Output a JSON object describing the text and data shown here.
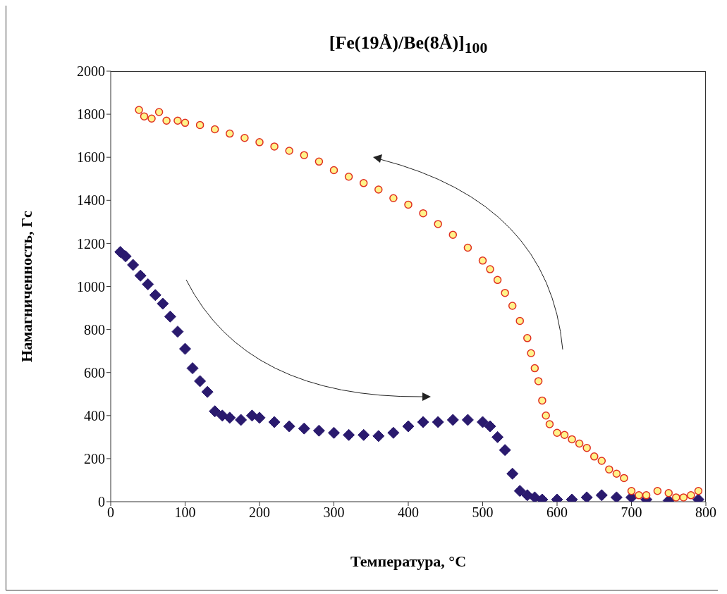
{
  "chart_data": {
    "type": "scatter",
    "title": "[Fe(19Å)/Be(8Å)]$_{100}$",
    "xlabel": "Температура, °C",
    "ylabel": "Намагниченность, Гс",
    "xlim": [
      0,
      800
    ],
    "xticks": [
      0,
      100,
      200,
      300,
      400,
      500,
      600,
      700,
      800
    ],
    "ylim": [
      0,
      2000
    ],
    "yticks": [
      0,
      200,
      400,
      600,
      800,
      1000,
      1200,
      1400,
      1600,
      1800,
      2000
    ],
    "grid": false,
    "legend": false,
    "series": [
      {
        "color": "#2a1a6e",
        "marker": "diamond",
        "x": [
          13,
          20,
          30,
          40,
          50,
          60,
          70,
          80,
          90,
          100,
          110,
          120,
          130,
          140,
          150,
          160,
          175,
          190,
          200,
          220,
          240,
          260,
          280,
          300,
          320,
          340,
          360,
          380,
          400,
          420,
          440,
          460,
          480,
          500,
          510,
          520,
          530,
          540,
          550,
          560,
          570,
          580,
          600,
          620,
          640,
          660,
          680,
          700,
          720,
          750,
          790
        ],
        "values": [
          1160,
          1140,
          1100,
          1050,
          1010,
          960,
          920,
          860,
          790,
          710,
          620,
          560,
          510,
          420,
          400,
          390,
          380,
          400,
          390,
          370,
          350,
          340,
          330,
          320,
          310,
          310,
          305,
          320,
          350,
          370,
          370,
          380,
          380,
          370,
          350,
          300,
          240,
          130,
          50,
          30,
          20,
          10,
          10,
          10,
          20,
          30,
          20,
          20,
          10,
          5,
          10
        ]
      },
      {
        "color": "#e03020",
        "marker": "circle",
        "x": [
          38,
          45,
          55,
          65,
          75,
          90,
          100,
          120,
          140,
          160,
          180,
          200,
          220,
          240,
          260,
          280,
          300,
          320,
          340,
          360,
          380,
          400,
          420,
          440,
          460,
          480,
          500,
          510,
          520,
          530,
          540,
          550,
          560,
          565,
          570,
          575,
          580,
          585,
          590,
          600,
          610,
          620,
          630,
          640,
          650,
          660,
          670,
          680,
          690,
          700,
          710,
          720,
          735,
          750,
          760,
          770,
          780,
          790
        ],
        "values": [
          1820,
          1790,
          1780,
          1810,
          1770,
          1770,
          1760,
          1750,
          1730,
          1710,
          1690,
          1670,
          1650,
          1630,
          1610,
          1580,
          1540,
          1510,
          1480,
          1450,
          1410,
          1380,
          1340,
          1290,
          1240,
          1180,
          1120,
          1080,
          1030,
          970,
          910,
          840,
          760,
          690,
          620,
          560,
          470,
          400,
          360,
          320,
          310,
          290,
          270,
          250,
          210,
          190,
          150,
          130,
          110,
          50,
          30,
          30,
          50,
          40,
          20,
          20,
          30,
          50
        ]
      }
    ]
  }
}
